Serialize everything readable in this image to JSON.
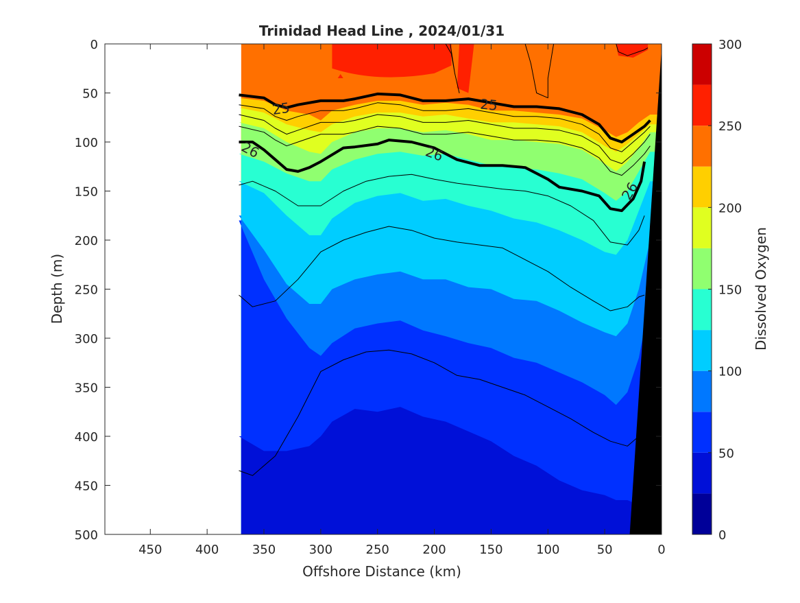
{
  "chart_data": {
    "type": "heatmap",
    "subtype": "filled-contour section",
    "title": "Trinidad Head Line , 2024/01/31",
    "xlabel": "Offshore Distance (km)",
    "ylabel": "Depth (m)",
    "xlim": [
      490,
      0
    ],
    "ylim": [
      0,
      500
    ],
    "x_reversed": true,
    "y_reversed": true,
    "x_ticks": [
      450,
      400,
      350,
      300,
      250,
      200,
      150,
      100,
      50,
      0
    ],
    "y_ticks": [
      0,
      50,
      100,
      150,
      200,
      250,
      300,
      350,
      400,
      450,
      500
    ],
    "data_extent_km": [
      370,
      0
    ],
    "colorbar": {
      "label": "Dissolved Oxygen",
      "min": 0,
      "max": 300,
      "step": 25,
      "ticks": [
        0,
        50,
        100,
        150,
        200,
        250,
        300
      ],
      "colors": [
        "#000099",
        "#0010d8",
        "#0030ff",
        "#0078ff",
        "#00cdff",
        "#28ffd2",
        "#90ff70",
        "#e0ff20",
        "#ffcf00",
        "#ff7000",
        "#ff2000",
        "#cc0000"
      ]
    },
    "oxygen_bands": [
      {
        "level": 250,
        "x": [
          372,
          341,
          330,
          310,
          300,
          290,
          270,
          250,
          230,
          210,
          190,
          160,
          140,
          120,
          100,
          80,
          60,
          40,
          20,
          10
        ],
        "top": [
          0,
          0,
          0,
          0,
          0,
          0,
          0,
          0,
          0,
          0,
          0,
          0,
          0,
          0,
          0,
          0,
          0,
          0,
          0,
          0
        ],
        "bottom": [
          0,
          0,
          0,
          0,
          0,
          0,
          0,
          0,
          0,
          0,
          0,
          0,
          0,
          0,
          0,
          0,
          0,
          0,
          0,
          0
        ]
      },
      {
        "level": 225,
        "x": [
          372,
          350,
          330,
          310,
          300,
          290,
          270,
          250,
          230,
          210,
          190,
          170,
          150,
          130,
          110,
          90,
          70,
          50,
          40,
          30,
          20,
          10
        ],
        "depth": [
          55,
          58,
          68,
          72,
          78,
          68,
          62,
          58,
          58,
          62,
          60,
          62,
          68,
          68,
          70,
          72,
          76,
          88,
          95,
          90,
          80,
          72
        ]
      },
      {
        "level": 200,
        "x": [
          372,
          350,
          330,
          310,
          300,
          290,
          270,
          250,
          230,
          210,
          190,
          170,
          150,
          130,
          110,
          90,
          70,
          50,
          40,
          30,
          20,
          10
        ],
        "depth": [
          65,
          70,
          82,
          88,
          90,
          82,
          74,
          70,
          70,
          74,
          72,
          76,
          80,
          80,
          82,
          84,
          90,
          104,
          110,
          102,
          92,
          82
        ]
      },
      {
        "level": 175,
        "x": [
          372,
          350,
          330,
          310,
          300,
          290,
          270,
          250,
          230,
          210,
          190,
          170,
          150,
          130,
          110,
          90,
          70,
          50,
          40,
          30,
          20,
          10
        ],
        "depth": [
          80,
          86,
          100,
          110,
          112,
          100,
          90,
          86,
          86,
          90,
          88,
          92,
          98,
          98,
          100,
          102,
          108,
          122,
          130,
          120,
          106,
          90
        ]
      },
      {
        "level": 150,
        "x": [
          372,
          350,
          330,
          310,
          300,
          290,
          270,
          250,
          230,
          210,
          190,
          170,
          150,
          130,
          110,
          90,
          70,
          50,
          40,
          30,
          20,
          10
        ],
        "depth": [
          112,
          120,
          132,
          140,
          140,
          128,
          118,
          112,
          110,
          114,
          112,
          118,
          124,
          126,
          128,
          132,
          138,
          152,
          160,
          150,
          130,
          110
        ]
      },
      {
        "level": 125,
        "x": [
          372,
          350,
          330,
          310,
          300,
          290,
          270,
          250,
          230,
          210,
          190,
          170,
          150,
          130,
          110,
          90,
          70,
          50,
          40,
          30,
          20,
          10
        ],
        "depth": [
          140,
          152,
          175,
          195,
          195,
          178,
          162,
          155,
          152,
          160,
          158,
          165,
          170,
          178,
          182,
          190,
          200,
          212,
          215,
          200,
          170,
          140
        ]
      },
      {
        "level": 100,
        "x": [
          372,
          350,
          330,
          310,
          300,
          290,
          270,
          250,
          230,
          210,
          190,
          170,
          150,
          130,
          110,
          90,
          70,
          50,
          40,
          30,
          20,
          10
        ],
        "depth": [
          175,
          210,
          245,
          265,
          265,
          250,
          240,
          235,
          232,
          240,
          240,
          248,
          250,
          260,
          262,
          272,
          284,
          294,
          298,
          285,
          250,
          200
        ]
      },
      {
        "level": 75,
        "x": [
          372,
          350,
          330,
          310,
          300,
          290,
          270,
          250,
          230,
          210,
          190,
          170,
          150,
          130,
          110,
          90,
          70,
          50,
          40,
          30,
          20,
          10
        ],
        "depth": [
          180,
          240,
          280,
          310,
          318,
          305,
          290,
          285,
          282,
          292,
          298,
          305,
          310,
          320,
          325,
          335,
          345,
          358,
          368,
          355,
          320,
          260
        ]
      },
      {
        "level": 50,
        "x": [
          372,
          350,
          330,
          310,
          300,
          290,
          270,
          250,
          230,
          210,
          190,
          170,
          150,
          130,
          110,
          90,
          70,
          50,
          40,
          30,
          20,
          10
        ],
        "depth": [
          400,
          415,
          415,
          410,
          400,
          385,
          372,
          375,
          370,
          380,
          385,
          395,
          405,
          420,
          430,
          445,
          455,
          460,
          465,
          465,
          470,
          475
        ]
      }
    ],
    "density_contours": [
      {
        "label": "25",
        "thick": true,
        "x": [
          372,
          350,
          340,
          330,
          320,
          300,
          280,
          270,
          250,
          230,
          210,
          190,
          170,
          150,
          130,
          110,
          90,
          70,
          55,
          45,
          35,
          25,
          15,
          10
        ],
        "depth": [
          52,
          55,
          62,
          65,
          62,
          58,
          58,
          56,
          51,
          52,
          58,
          58,
          56,
          60,
          64,
          64,
          66,
          72,
          82,
          96,
          100,
          92,
          84,
          78
        ]
      },
      {
        "label": "26",
        "thick": true,
        "x": [
          372,
          360,
          350,
          340,
          330,
          320,
          310,
          300,
          280,
          270,
          250,
          240,
          220,
          200,
          180,
          160,
          140,
          120,
          100,
          90,
          70,
          55,
          45,
          35,
          25,
          18,
          15
        ],
        "depth": [
          100,
          100,
          108,
          118,
          128,
          130,
          126,
          120,
          106,
          105,
          102,
          98,
          100,
          106,
          118,
          124,
          124,
          126,
          138,
          146,
          150,
          155,
          168,
          170,
          158,
          140,
          120
        ]
      },
      {
        "label": "",
        "thick": false,
        "x": [
          372,
          350,
          340,
          330,
          320,
          300,
          280,
          270,
          250,
          230,
          210,
          190,
          170,
          150,
          130,
          110,
          90,
          70,
          55,
          45,
          35,
          25,
          15,
          10
        ],
        "depth": [
          62,
          66,
          74,
          78,
          74,
          68,
          68,
          66,
          60,
          62,
          68,
          68,
          66,
          70,
          74,
          74,
          76,
          82,
          92,
          106,
          110,
          100,
          90,
          84
        ]
      },
      {
        "label": "",
        "thick": false,
        "x": [
          372,
          350,
          340,
          330,
          320,
          300,
          280,
          270,
          250,
          230,
          210,
          190,
          170,
          150,
          130,
          110,
          90,
          70,
          55,
          45,
          35,
          25,
          15,
          10
        ],
        "depth": [
          72,
          78,
          86,
          92,
          88,
          80,
          80,
          78,
          72,
          74,
          80,
          80,
          78,
          82,
          86,
          86,
          88,
          94,
          104,
          118,
          122,
          112,
          100,
          92
        ]
      },
      {
        "label": "",
        "thick": false,
        "x": [
          372,
          350,
          340,
          330,
          320,
          300,
          280,
          270,
          250,
          230,
          210,
          190,
          170,
          150,
          130,
          110,
          90,
          70,
          55,
          45,
          35,
          25,
          15,
          10
        ],
        "depth": [
          84,
          90,
          98,
          104,
          100,
          92,
          92,
          90,
          84,
          86,
          92,
          92,
          90,
          94,
          98,
          98,
          100,
          106,
          116,
          130,
          134,
          124,
          112,
          104
        ]
      },
      {
        "label": "",
        "thick": false,
        "x": [
          372,
          360,
          340,
          320,
          300,
          280,
          260,
          240,
          220,
          200,
          180,
          160,
          140,
          120,
          100,
          80,
          60,
          45,
          30,
          20,
          15
        ],
        "depth": [
          144,
          140,
          150,
          165,
          165,
          150,
          140,
          135,
          133,
          138,
          142,
          145,
          148,
          150,
          155,
          165,
          180,
          202,
          205,
          190,
          175
        ]
      },
      {
        "label": "",
        "thick": false,
        "x": [
          372,
          360,
          340,
          320,
          300,
          280,
          260,
          240,
          220,
          200,
          180,
          160,
          140,
          120,
          100,
          80,
          60,
          45,
          30,
          20,
          15
        ],
        "depth": [
          256,
          268,
          262,
          240,
          212,
          200,
          192,
          186,
          190,
          198,
          202,
          205,
          208,
          220,
          232,
          248,
          262,
          272,
          268,
          258,
          256
        ]
      },
      {
        "label": "",
        "thick": false,
        "x": [
          372,
          360,
          340,
          320,
          300,
          280,
          260,
          240,
          220,
          200,
          180,
          160,
          140,
          120,
          100,
          80,
          60,
          45,
          30,
          20,
          15
        ],
        "depth": [
          435,
          440,
          420,
          380,
          334,
          322,
          314,
          312,
          316,
          325,
          338,
          342,
          350,
          358,
          370,
          382,
          396,
          405,
          410,
          400,
          395
        ]
      },
      {
        "label": "",
        "thick": false,
        "x": [
          120,
          115,
          110,
          100,
          100,
          95
        ],
        "depth": [
          0,
          20,
          50,
          55,
          35,
          0
        ]
      },
      {
        "label": "",
        "thick": false,
        "x": [
          190,
          185,
          182,
          178,
          182,
          186
        ],
        "depth": [
          0,
          10,
          30,
          50,
          30,
          0
        ]
      },
      {
        "label": "",
        "thick": false,
        "x": [
          40,
          38,
          30,
          25,
          20,
          15,
          12
        ],
        "depth": [
          0,
          8,
          12,
          10,
          8,
          6,
          4
        ]
      }
    ],
    "bathymetry": {
      "x": [
        10,
        0,
        0,
        28
      ],
      "depth": [
        500,
        0,
        500,
        500
      ]
    }
  }
}
